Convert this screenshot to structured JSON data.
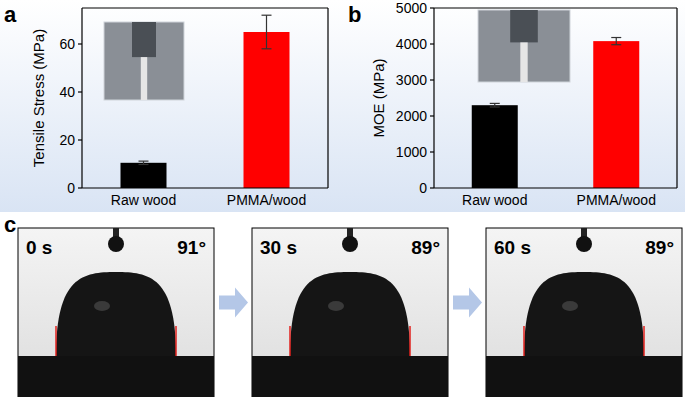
{
  "chart_data": [
    {
      "type": "bar",
      "y_label": "Tensile Stress (MPa)",
      "categories": [
        "Raw wood",
        "PMMA/wood"
      ],
      "values": [
        10.5,
        65
      ],
      "errors": [
        0.7,
        7
      ],
      "colors": [
        "#000000",
        "#ff0000"
      ],
      "ylim": [
        0,
        75
      ],
      "yticks": [
        0,
        20,
        40,
        60
      ],
      "grid": false
    },
    {
      "type": "bar",
      "y_label": "MOE (MPa)",
      "categories": [
        "Raw wood",
        "PMMA/wood"
      ],
      "values": [
        2300,
        4080
      ],
      "errors": [
        50,
        100
      ],
      "colors": [
        "#000000",
        "#ff0000"
      ],
      "ylim": [
        0,
        5000
      ],
      "yticks": [
        0,
        1000,
        2000,
        3000,
        4000,
        5000
      ],
      "grid": false
    }
  ],
  "panels": {
    "labels": [
      "a",
      "b",
      "c"
    ]
  },
  "contact_angle": {
    "frames": [
      {
        "time": "0 s",
        "angle": "91°"
      },
      {
        "time": "30 s",
        "angle": "89°"
      },
      {
        "time": "60 s",
        "angle": "89°"
      }
    ]
  }
}
